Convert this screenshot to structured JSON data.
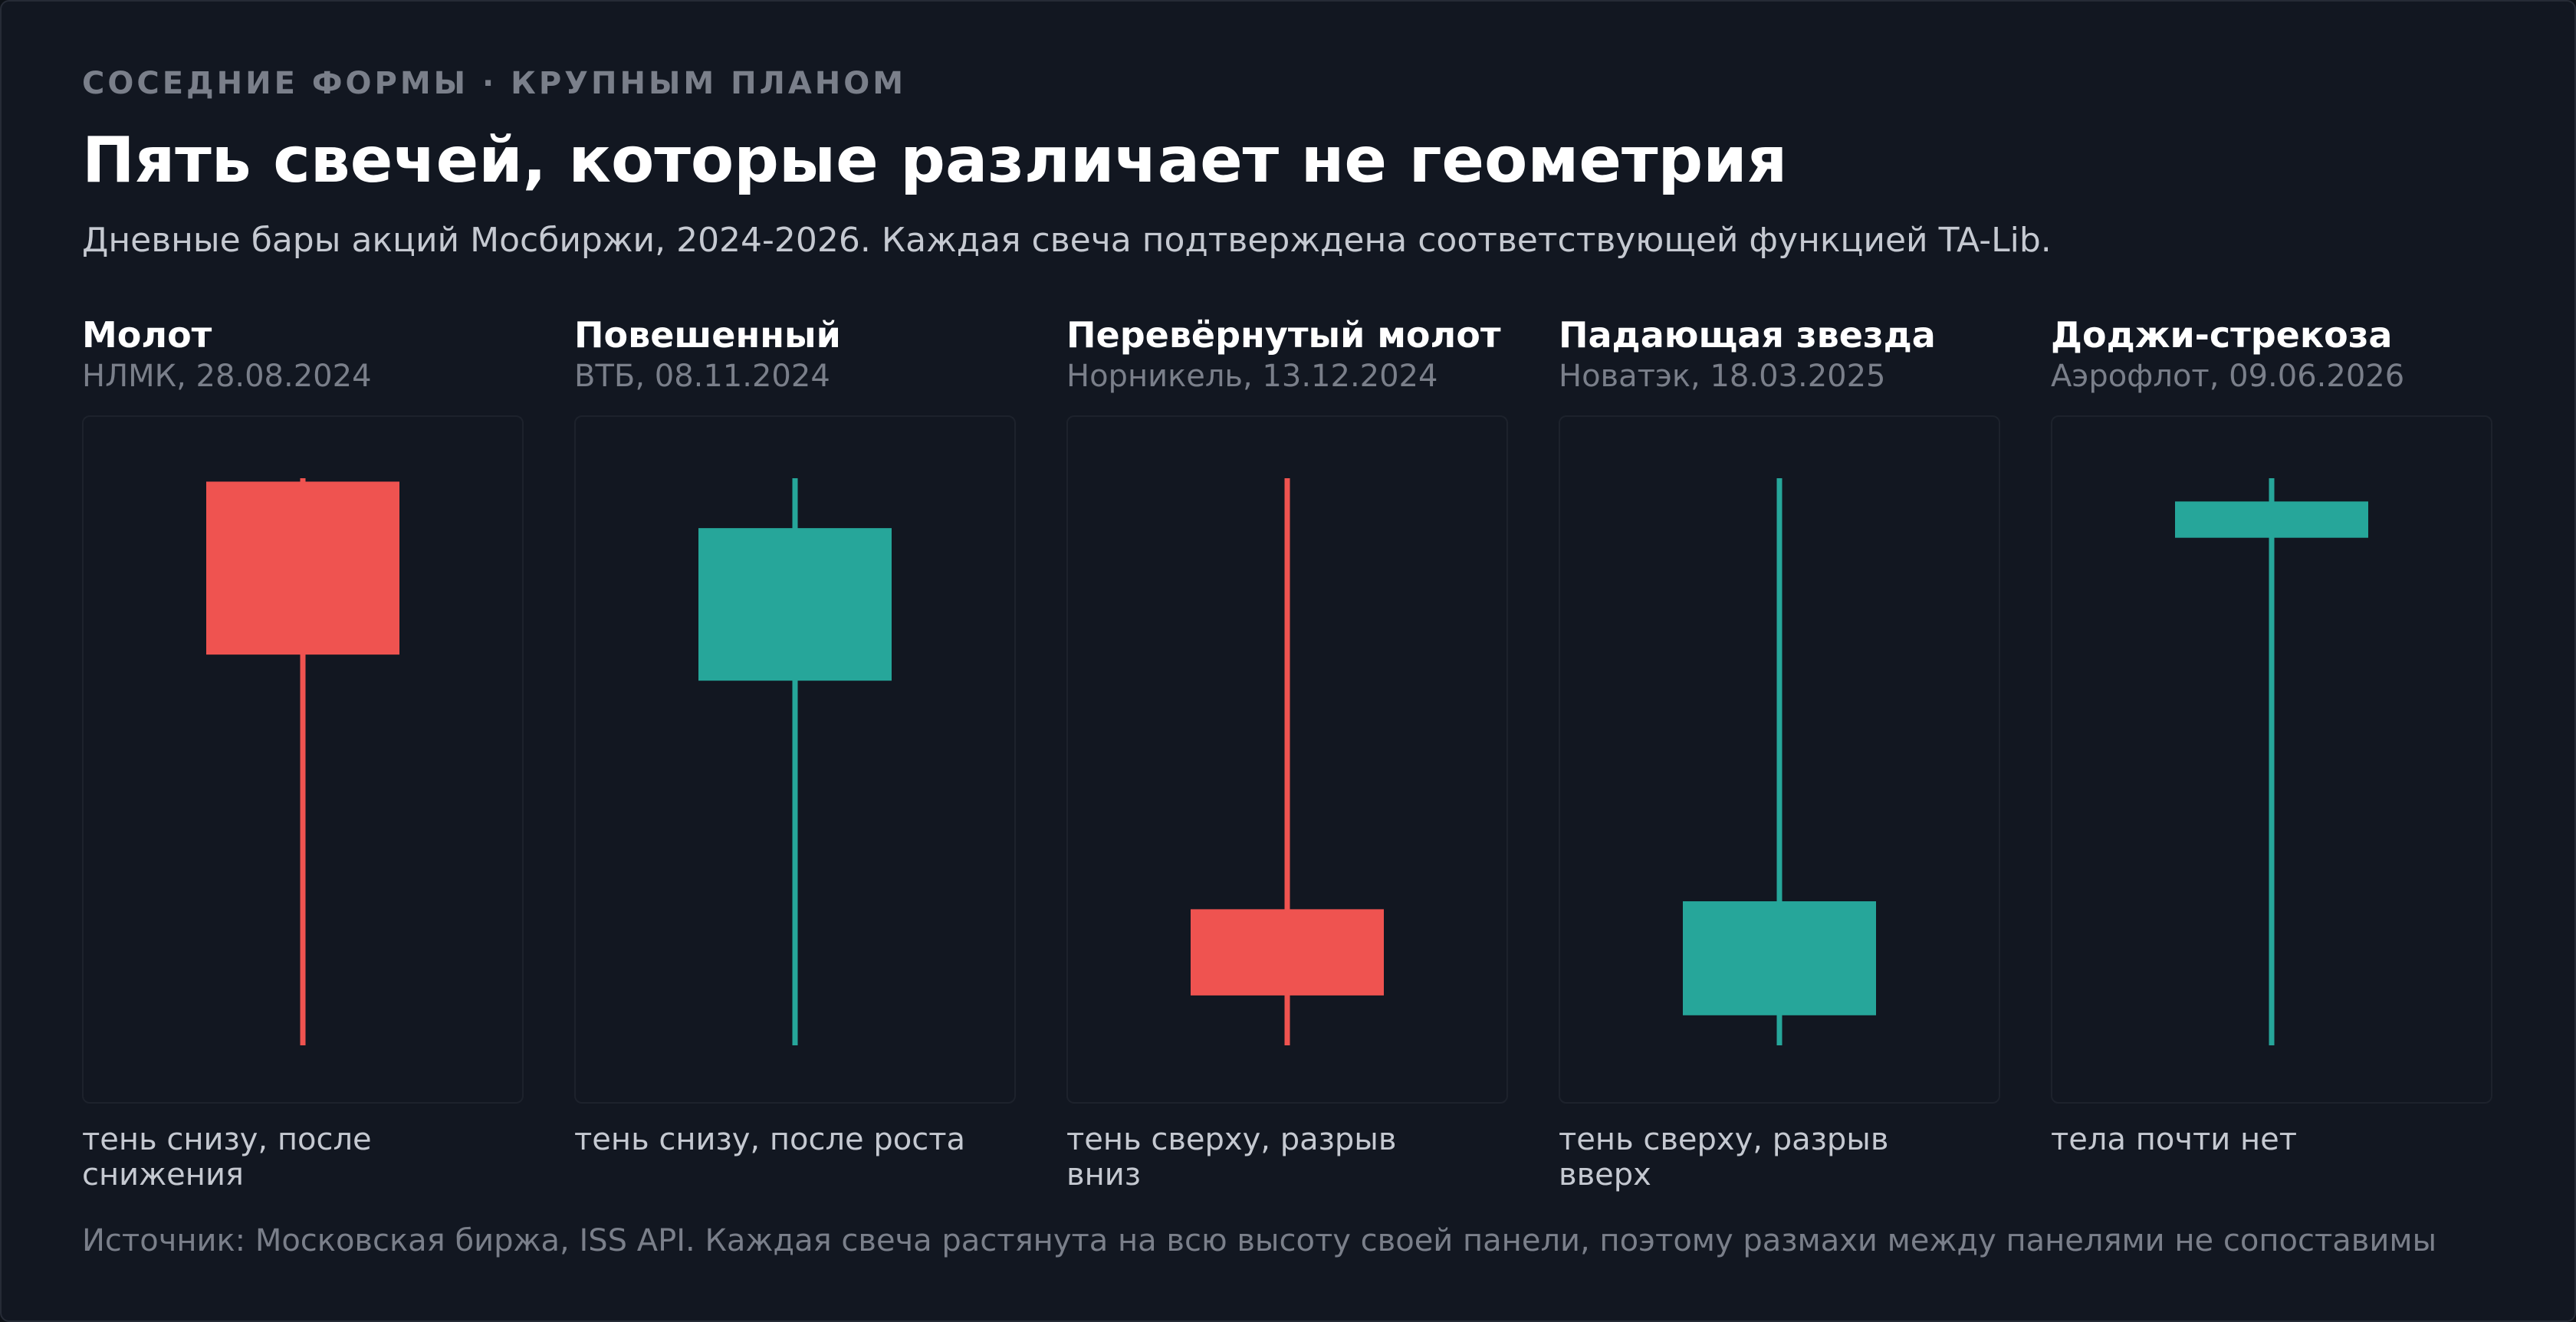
{
  "header": {
    "eyebrow": "СОСЕДНИЕ ФОРМЫ · КРУПНЫМ ПЛАНОМ",
    "title": "Пять свечей, которые различает не геометрия",
    "subtitle": "Дневные бары акций Мосбиржи, 2024-2026. Каждая свеча подтверждена соответствующей функцией TA-Lib."
  },
  "footer": {
    "source": "Источник: Московская биржа, ISS API. Каждая свеча растянута на всю высоту своей панели, поэтому размахи между панелями не сопоставимы"
  },
  "colors": {
    "bearish": "#ef5350",
    "bullish": "#26a69a"
  },
  "chart_data": [
    {
      "type": "candlestick",
      "title": "Молот",
      "subtitle": "НЛМК, 28.08.2024",
      "caption": "тень снизу, после снижения",
      "direction": "bearish",
      "ohlc_normalized": {
        "high": 1.0,
        "open": 0.994,
        "close": 0.689,
        "low": 0.0
      }
    },
    {
      "type": "candlestick",
      "title": "Повешенный",
      "subtitle": "ВТБ, 08.11.2024",
      "caption": "тень снизу, после роста",
      "direction": "bullish",
      "ohlc_normalized": {
        "high": 1.0,
        "open": 0.643,
        "close": 0.912,
        "low": 0.0
      }
    },
    {
      "type": "candlestick",
      "title": "Перевёрнутый молот",
      "subtitle": "Норникель, 13.12.2024",
      "caption": "тень сверху, разрыв вниз",
      "direction": "bearish",
      "ohlc_normalized": {
        "high": 1.0,
        "open": 0.24,
        "close": 0.088,
        "low": 0.0
      }
    },
    {
      "type": "candlestick",
      "title": "Падающая звезда",
      "subtitle": "Новатэк, 18.03.2025",
      "caption": "тень сверху, разрыв вверх",
      "direction": "bullish",
      "ohlc_normalized": {
        "high": 1.0,
        "open": 0.053,
        "close": 0.254,
        "low": 0.0
      }
    },
    {
      "type": "candlestick",
      "title": "Доджи-стрекоза",
      "subtitle": "Аэрофлот, 09.06.2026",
      "caption": "тела почти нет",
      "direction": "bullish",
      "ohlc_normalized": {
        "high": 1.0,
        "open": 0.895,
        "close": 0.959,
        "low": 0.0
      }
    }
  ]
}
